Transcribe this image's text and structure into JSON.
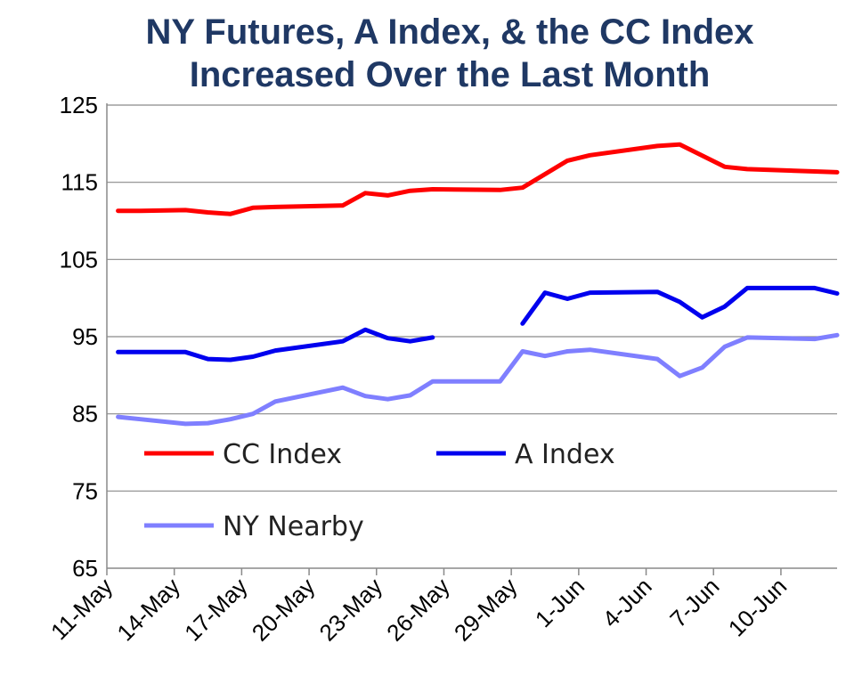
{
  "chart_data": {
    "type": "line",
    "title_line1": "NY Futures, A Index, & the CC Index",
    "title_line2": "Increased Over the Last Month",
    "xlabel": "",
    "ylabel": "",
    "ylim": [
      65,
      125
    ],
    "yticks": [
      "125",
      "115",
      "105",
      "95",
      "85",
      "75",
      "65"
    ],
    "ytick_values": [
      125,
      115,
      105,
      95,
      85,
      75,
      65
    ],
    "xlim": [
      0,
      32
    ],
    "xticks": [
      "11-May",
      "14-May",
      "17-May",
      "20-May",
      "23-May",
      "26-May",
      "29-May",
      "1-Jun",
      "4-Jun",
      "7-Jun",
      "10-Jun"
    ],
    "xtick_values": [
      0,
      3,
      6,
      9,
      12,
      15,
      18,
      21,
      24,
      27,
      30
    ],
    "grid": "horizontal",
    "legend_position": "lower-left inside",
    "series": [
      {
        "name": "CC Index",
        "color": "#ff0000",
        "points": [
          [
            0.5,
            111.3
          ],
          [
            1.5,
            111.3
          ],
          [
            3.5,
            111.4
          ],
          [
            4.5,
            111.1
          ],
          [
            5.5,
            110.9
          ],
          [
            6.5,
            111.7
          ],
          [
            7.5,
            111.8
          ],
          [
            10.5,
            112.0
          ],
          [
            11.5,
            113.6
          ],
          [
            12.5,
            113.3
          ],
          [
            13.5,
            113.9
          ],
          [
            14.5,
            114.1
          ],
          [
            17.5,
            114.0
          ],
          [
            18.5,
            114.3
          ],
          [
            20.5,
            117.8
          ],
          [
            21.5,
            118.5
          ],
          [
            24.5,
            119.7
          ],
          [
            25.5,
            119.9
          ],
          [
            27.5,
            117.0
          ],
          [
            28.5,
            116.7
          ],
          [
            31.5,
            116.4
          ],
          [
            32.5,
            116.3
          ]
        ]
      },
      {
        "name": "A Index",
        "color": "#0000ee",
        "segments": [
          [
            [
              0.5,
              93.0
            ],
            [
              3.5,
              93.0
            ],
            [
              4.5,
              92.1
            ],
            [
              5.5,
              92.0
            ],
            [
              6.5,
              92.4
            ],
            [
              7.5,
              93.2
            ],
            [
              10.5,
              94.4
            ],
            [
              11.5,
              95.9
            ],
            [
              12.5,
              94.8
            ],
            [
              13.5,
              94.4
            ],
            [
              14.5,
              94.9
            ]
          ],
          [
            [
              18.5,
              96.7
            ],
            [
              19.5,
              100.7
            ],
            [
              20.5,
              99.9
            ],
            [
              21.5,
              100.7
            ],
            [
              24.5,
              100.8
            ],
            [
              25.5,
              99.5
            ],
            [
              26.5,
              97.5
            ],
            [
              27.5,
              98.9
            ],
            [
              28.5,
              101.3
            ],
            [
              31.5,
              101.3
            ],
            [
              32.5,
              100.6
            ]
          ]
        ]
      },
      {
        "name": "NY Nearby",
        "color": "#7f7fff",
        "points": [
          [
            0.5,
            84.6
          ],
          [
            1.5,
            84.3
          ],
          [
            3.5,
            83.7
          ],
          [
            4.5,
            83.8
          ],
          [
            5.5,
            84.3
          ],
          [
            6.5,
            85.0
          ],
          [
            7.5,
            86.6
          ],
          [
            10.5,
            88.4
          ],
          [
            11.5,
            87.3
          ],
          [
            12.5,
            86.9
          ],
          [
            13.5,
            87.4
          ],
          [
            14.5,
            89.2
          ],
          [
            17.5,
            89.2
          ],
          [
            18.5,
            93.1
          ],
          [
            19.5,
            92.5
          ],
          [
            20.5,
            93.1
          ],
          [
            21.5,
            93.3
          ],
          [
            24.5,
            92.1
          ],
          [
            25.5,
            89.9
          ],
          [
            26.5,
            91.0
          ],
          [
            27.5,
            93.7
          ],
          [
            28.5,
            94.9
          ],
          [
            31.5,
            94.7
          ],
          [
            32.5,
            95.2
          ]
        ]
      }
    ]
  }
}
